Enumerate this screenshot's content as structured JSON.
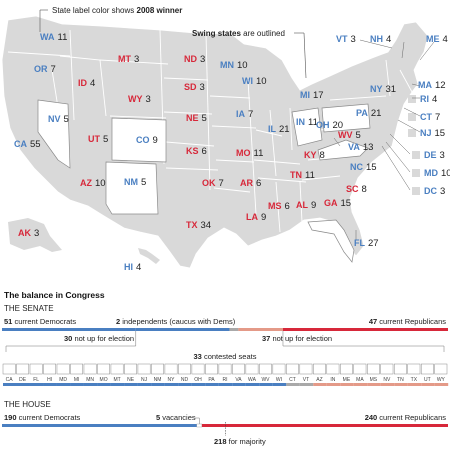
{
  "colors": {
    "dem": "#4a7fc1",
    "rep": "#d7283a",
    "rep_light": "#e49a88",
    "independent": "#a9a9a9",
    "land": "#d9d9d9",
    "swing": "#ffffff",
    "border": "#ffffff"
  },
  "map": {
    "legend_color_prefix": "State label color shows ",
    "legend_color_bold": "2008 winner",
    "legend_swing_bold": "Swing states",
    "legend_swing_suffix": " are outlined",
    "states": [
      {
        "abbr": "WA",
        "ev": "11",
        "winner": "dem"
      },
      {
        "abbr": "OR",
        "ev": "7",
        "winner": "dem"
      },
      {
        "abbr": "CA",
        "ev": "55",
        "winner": "dem"
      },
      {
        "abbr": "NV",
        "ev": "5",
        "winner": "dem",
        "swing": true
      },
      {
        "abbr": "ID",
        "ev": "4",
        "winner": "rep"
      },
      {
        "abbr": "MT",
        "ev": "3",
        "winner": "rep"
      },
      {
        "abbr": "WY",
        "ev": "3",
        "winner": "rep"
      },
      {
        "abbr": "UT",
        "ev": "5",
        "winner": "rep"
      },
      {
        "abbr": "AZ",
        "ev": "10",
        "winner": "rep"
      },
      {
        "abbr": "CO",
        "ev": "9",
        "winner": "dem",
        "swing": true
      },
      {
        "abbr": "NM",
        "ev": "5",
        "winner": "dem",
        "swing": true
      },
      {
        "abbr": "ND",
        "ev": "3",
        "winner": "rep"
      },
      {
        "abbr": "SD",
        "ev": "3",
        "winner": "rep"
      },
      {
        "abbr": "NE",
        "ev": "5",
        "winner": "rep"
      },
      {
        "abbr": "KS",
        "ev": "6",
        "winner": "rep"
      },
      {
        "abbr": "OK",
        "ev": "7",
        "winner": "rep"
      },
      {
        "abbr": "TX",
        "ev": "34",
        "winner": "rep"
      },
      {
        "abbr": "MN",
        "ev": "10",
        "winner": "dem"
      },
      {
        "abbr": "IA",
        "ev": "7",
        "winner": "dem"
      },
      {
        "abbr": "MO",
        "ev": "11",
        "winner": "rep"
      },
      {
        "abbr": "AR",
        "ev": "6",
        "winner": "rep"
      },
      {
        "abbr": "LA",
        "ev": "9",
        "winner": "rep"
      },
      {
        "abbr": "WI",
        "ev": "10",
        "winner": "dem"
      },
      {
        "abbr": "IL",
        "ev": "21",
        "winner": "dem"
      },
      {
        "abbr": "MI",
        "ev": "17",
        "winner": "dem"
      },
      {
        "abbr": "IN",
        "ev": "11",
        "winner": "dem"
      },
      {
        "abbr": "OH",
        "ev": "20",
        "winner": "dem",
        "swing": true
      },
      {
        "abbr": "KY",
        "ev": "8",
        "winner": "rep"
      },
      {
        "abbr": "TN",
        "ev": "11",
        "winner": "rep"
      },
      {
        "abbr": "MS",
        "ev": "6",
        "winner": "rep"
      },
      {
        "abbr": "AL",
        "ev": "9",
        "winner": "rep"
      },
      {
        "abbr": "GA",
        "ev": "15",
        "winner": "rep"
      },
      {
        "abbr": "FL",
        "ev": "27",
        "winner": "dem",
        "swing": true
      },
      {
        "abbr": "SC",
        "ev": "8",
        "winner": "rep"
      },
      {
        "abbr": "NC",
        "ev": "15",
        "winner": "dem"
      },
      {
        "abbr": "VA",
        "ev": "13",
        "winner": "dem",
        "swing": true
      },
      {
        "abbr": "WV",
        "ev": "5",
        "winner": "rep"
      },
      {
        "abbr": "PA",
        "ev": "21",
        "winner": "dem",
        "swing": true
      },
      {
        "abbr": "NY",
        "ev": "31",
        "winner": "dem"
      },
      {
        "abbr": "VT",
        "ev": "3",
        "winner": "dem"
      },
      {
        "abbr": "NH",
        "ev": "4",
        "winner": "dem"
      },
      {
        "abbr": "ME",
        "ev": "4",
        "winner": "dem"
      },
      {
        "abbr": "MA",
        "ev": "12",
        "winner": "dem"
      },
      {
        "abbr": "RI",
        "ev": "4",
        "winner": "dem"
      },
      {
        "abbr": "CT",
        "ev": "7",
        "winner": "dem"
      },
      {
        "abbr": "NJ",
        "ev": "15",
        "winner": "dem"
      },
      {
        "abbr": "DE",
        "ev": "3",
        "winner": "dem"
      },
      {
        "abbr": "MD",
        "ev": "10",
        "winner": "dem"
      },
      {
        "abbr": "DC",
        "ev": "3",
        "winner": "dem"
      },
      {
        "abbr": "AK",
        "ev": "3",
        "winner": "rep"
      },
      {
        "abbr": "HI",
        "ev": "4",
        "winner": "dem"
      }
    ]
  },
  "chart_data": [
    {
      "type": "bar",
      "title": "The balance in Congress",
      "section": "THE SENATE",
      "total": 100,
      "democrats": 51,
      "independents": 2,
      "republicans": 47,
      "dem_label": "current Democrats",
      "ind_label": "independents (caucus with Dems)",
      "rep_label": "current Republicans",
      "dem_not_up": 30,
      "not_up_label": "not up for election",
      "rep_not_up": 37,
      "contested": 33,
      "contested_label": "contested seats",
      "contested_seats": [
        {
          "state": "CA",
          "party": "dem"
        },
        {
          "state": "DE",
          "party": "dem"
        },
        {
          "state": "FL",
          "party": "dem"
        },
        {
          "state": "HI",
          "party": "dem"
        },
        {
          "state": "MD",
          "party": "dem"
        },
        {
          "state": "MI",
          "party": "dem"
        },
        {
          "state": "MN",
          "party": "dem"
        },
        {
          "state": "MO",
          "party": "dem"
        },
        {
          "state": "MT",
          "party": "dem"
        },
        {
          "state": "NE",
          "party": "dem"
        },
        {
          "state": "NJ",
          "party": "dem"
        },
        {
          "state": "NM",
          "party": "dem"
        },
        {
          "state": "NY",
          "party": "dem"
        },
        {
          "state": "ND",
          "party": "dem"
        },
        {
          "state": "OH",
          "party": "dem"
        },
        {
          "state": "PA",
          "party": "dem"
        },
        {
          "state": "RI",
          "party": "dem"
        },
        {
          "state": "VA",
          "party": "dem"
        },
        {
          "state": "WA",
          "party": "dem"
        },
        {
          "state": "WV",
          "party": "dem"
        },
        {
          "state": "WI",
          "party": "dem"
        },
        {
          "state": "CT",
          "party": "ind"
        },
        {
          "state": "VT",
          "party": "ind"
        },
        {
          "state": "AZ",
          "party": "rep"
        },
        {
          "state": "IN",
          "party": "rep"
        },
        {
          "state": "ME",
          "party": "rep"
        },
        {
          "state": "MA",
          "party": "rep"
        },
        {
          "state": "MS",
          "party": "rep"
        },
        {
          "state": "NV",
          "party": "rep"
        },
        {
          "state": "TN",
          "party": "rep"
        },
        {
          "state": "TX",
          "party": "rep"
        },
        {
          "state": "UT",
          "party": "rep"
        },
        {
          "state": "WY",
          "party": "rep"
        }
      ]
    },
    {
      "type": "bar",
      "section": "THE HOUSE",
      "total": 435,
      "democrats": 190,
      "vacancies": 5,
      "republicans": 240,
      "dem_label": "current Democrats",
      "vac_label": "vacancies",
      "rep_label": "current Republicans",
      "majority": 218,
      "majority_label": "for majority"
    }
  ]
}
